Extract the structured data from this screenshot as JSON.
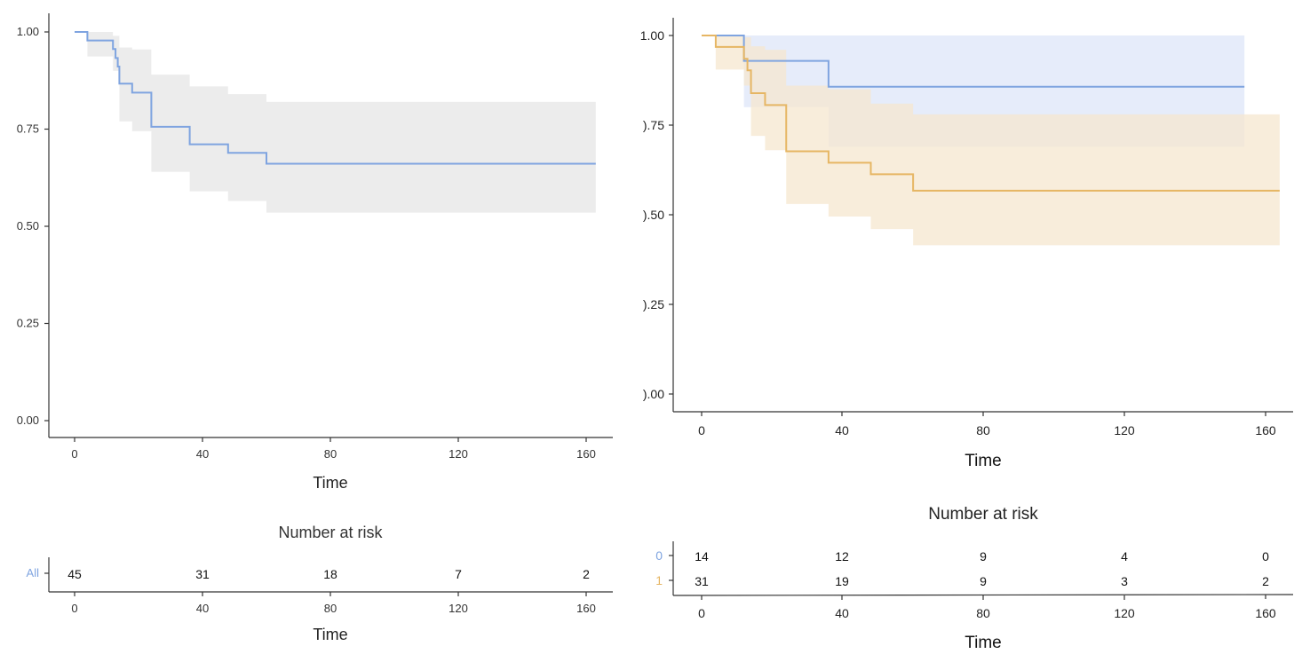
{
  "colors": {
    "all": "#7fa4e0",
    "group0": "#7fa4e0",
    "group1": "#e6b664",
    "ci_all": "#e6e6e6",
    "ci_group0": "#dde6f8",
    "ci_group1": "#f6e7cf"
  },
  "chart_data": [
    {
      "type": "line",
      "subtype": "kaplan-meier",
      "xlabel": "Time",
      "x_ticks": [
        "0",
        "40",
        "80",
        "120",
        "160"
      ],
      "y_ticks": [
        "0.00",
        "0.25",
        "0.50",
        "0.75",
        "1.00"
      ],
      "xlim": [
        -7,
        167
      ],
      "ylim": [
        0,
        1.05
      ],
      "series": [
        {
          "key": "all",
          "steps": [
            [
              0,
              1.0
            ],
            [
              4,
              0.978
            ],
            [
              12,
              0.956
            ],
            [
              12.8,
              0.933
            ],
            [
              13.5,
              0.911
            ],
            [
              14,
              0.867
            ],
            [
              18,
              0.844
            ],
            [
              24,
              0.756
            ],
            [
              36,
              0.711
            ],
            [
              48,
              0.689
            ],
            [
              60,
              0.661
            ],
            [
              163,
              0.661
            ]
          ],
          "ci_lower": [
            [
              0,
              1.0
            ],
            [
              4,
              0.937
            ],
            [
              12,
              0.9
            ],
            [
              14,
              0.77
            ],
            [
              18,
              0.745
            ],
            [
              24,
              0.64
            ],
            [
              36,
              0.59
            ],
            [
              48,
              0.565
            ],
            [
              60,
              0.535
            ],
            [
              163,
              0.535
            ]
          ],
          "ci_upper": [
            [
              0,
              1.0
            ],
            [
              4,
              1.0
            ],
            [
              12,
              0.99
            ],
            [
              14,
              0.96
            ],
            [
              18,
              0.955
            ],
            [
              24,
              0.89
            ],
            [
              36,
              0.86
            ],
            [
              48,
              0.84
            ],
            [
              60,
              0.82
            ],
            [
              163,
              0.82
            ]
          ]
        }
      ],
      "risk_table": {
        "title": "Number at risk",
        "xlabel": "Time",
        "rows": [
          {
            "label": "All",
            "values": [
              "45",
              "31",
              "18",
              "7",
              "2"
            ]
          }
        ]
      }
    },
    {
      "type": "line",
      "subtype": "kaplan-meier",
      "xlabel": "Time",
      "x_ticks": [
        "0",
        "40",
        "80",
        "120",
        "160"
      ],
      "y_ticks": [
        ").00",
        ").25",
        ").50",
        ").75",
        "1.00"
      ],
      "xlim": [
        -8,
        168
      ],
      "ylim": [
        0,
        1.05
      ],
      "series": [
        {
          "key": "group0",
          "steps": [
            [
              0,
              1.0
            ],
            [
              12,
              0.929
            ],
            [
              36,
              0.857
            ],
            [
              154,
              0.857
            ]
          ],
          "ci_lower": [
            [
              0,
              1.0
            ],
            [
              12,
              0.8
            ],
            [
              36,
              0.69
            ],
            [
              154,
              0.69
            ]
          ],
          "ci_upper": [
            [
              0,
              1.0
            ],
            [
              154,
              1.0
            ]
          ]
        },
        {
          "key": "group1",
          "steps": [
            [
              0,
              1.0
            ],
            [
              4,
              0.968
            ],
            [
              12,
              0.935
            ],
            [
              13,
              0.903
            ],
            [
              14,
              0.839
            ],
            [
              18,
              0.806
            ],
            [
              24,
              0.677
            ],
            [
              36,
              0.645
            ],
            [
              48,
              0.613
            ],
            [
              60,
              0.567
            ],
            [
              164,
              0.567
            ]
          ],
          "ci_lower": [
            [
              0,
              1.0
            ],
            [
              4,
              0.905
            ],
            [
              12,
              0.86
            ],
            [
              14,
              0.72
            ],
            [
              18,
              0.68
            ],
            [
              24,
              0.53
            ],
            [
              36,
              0.495
            ],
            [
              48,
              0.46
            ],
            [
              60,
              0.415
            ],
            [
              164,
              0.415
            ]
          ],
          "ci_upper": [
            [
              0,
              1.0
            ],
            [
              4,
              1.0
            ],
            [
              12,
              0.995
            ],
            [
              14,
              0.97
            ],
            [
              18,
              0.96
            ],
            [
              24,
              0.86
            ],
            [
              36,
              0.85
            ],
            [
              48,
              0.81
            ],
            [
              60,
              0.78
            ],
            [
              164,
              0.78
            ]
          ]
        }
      ],
      "risk_table": {
        "title": "Number at risk",
        "xlabel": "Time",
        "rows": [
          {
            "label": "0",
            "color_key": "group0",
            "values": [
              "14",
              "12",
              "9",
              "4",
              "0"
            ]
          },
          {
            "label": "1",
            "color_key": "group1",
            "values": [
              "31",
              "19",
              "9",
              "3",
              "2"
            ]
          }
        ]
      }
    }
  ]
}
